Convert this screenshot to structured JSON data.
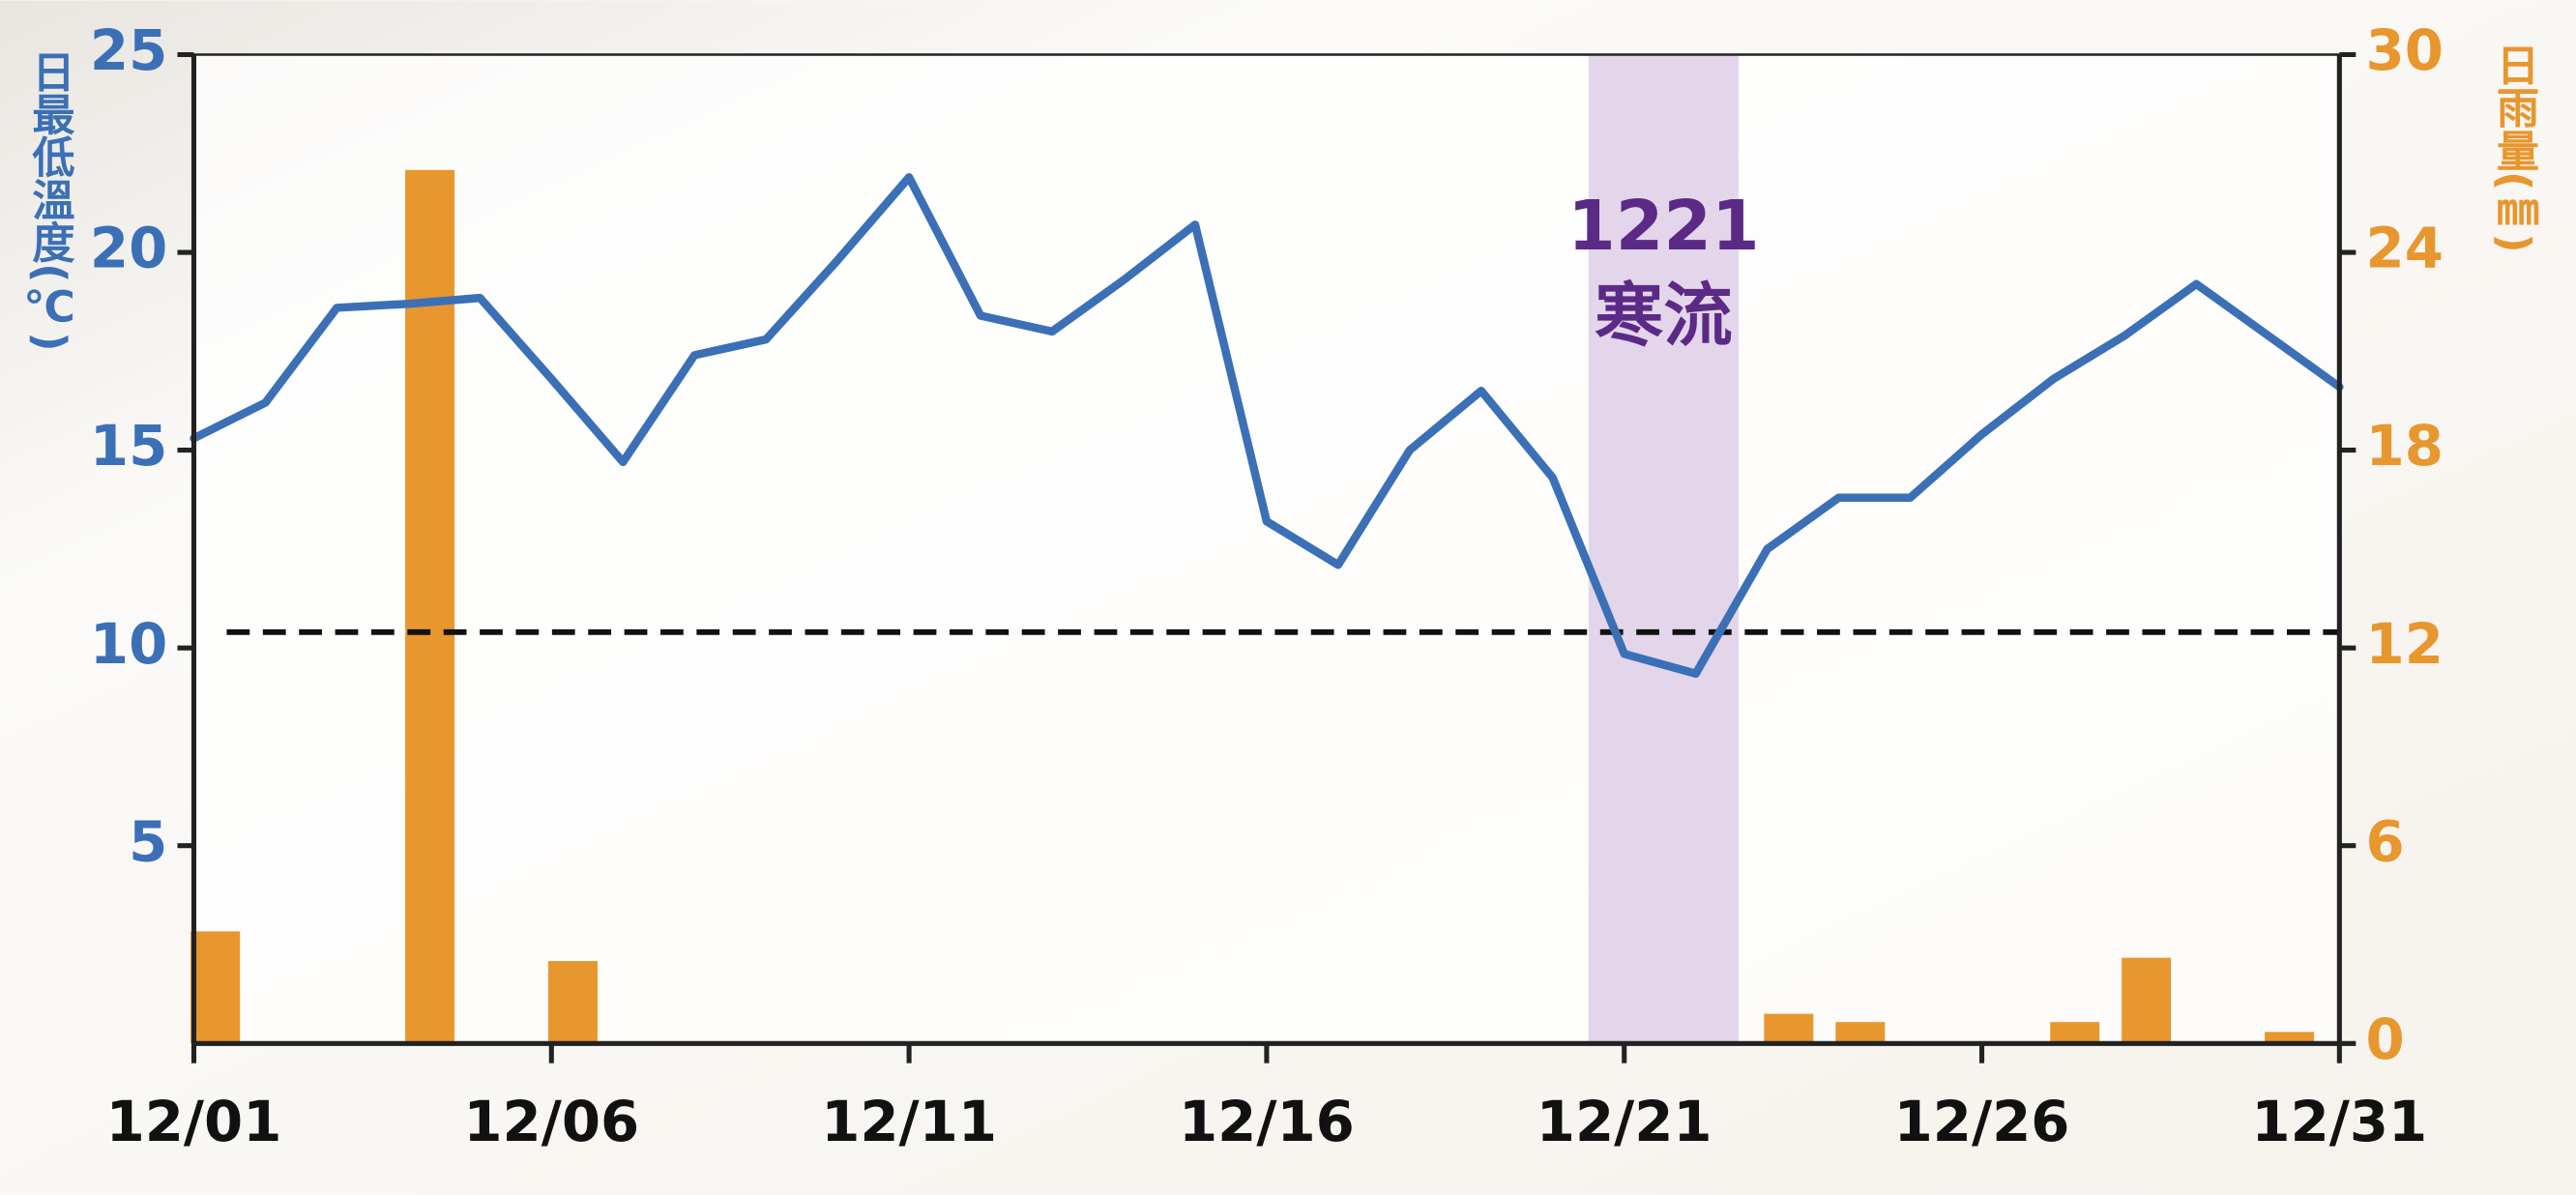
{
  "chart_data": {
    "type": "line_bar",
    "y_label": "日最低溫度(℃)",
    "y2_label": "日雨量(㎜)",
    "x": [
      1,
      2,
      3,
      4,
      5,
      6,
      7,
      8,
      9,
      10,
      11,
      12,
      13,
      14,
      15,
      16,
      17,
      18,
      19,
      20,
      21,
      22,
      23,
      24,
      25,
      26,
      27,
      28,
      29,
      30,
      31
    ],
    "xlim": [
      1,
      31
    ],
    "xticks": [
      {
        "value": 1,
        "label": "12/01"
      },
      {
        "value": 6,
        "label": "12/06"
      },
      {
        "value": 11,
        "label": "12/11"
      },
      {
        "value": 16,
        "label": "12/16"
      },
      {
        "value": 21,
        "label": "12/21"
      },
      {
        "value": 26,
        "label": "12/26"
      },
      {
        "value": 31,
        "label": "12/31"
      }
    ],
    "ylim": [
      0,
      25
    ],
    "yticks": [
      5,
      10,
      15,
      20,
      25
    ],
    "y2lim": [
      0,
      30
    ],
    "y2ticks": [
      0,
      6,
      12,
      18,
      24,
      30
    ],
    "reference_line": 10.4,
    "highlight": {
      "xrange": [
        20.5,
        22.6
      ],
      "label": [
        "1221",
        "寒流"
      ],
      "color": "#e3d6ea"
    },
    "series": [
      {
        "type": "line",
        "color": "#3b70b7",
        "values": [
          15.3,
          16.2,
          18.6,
          18.7,
          18.85,
          16.8,
          14.7,
          17.4,
          17.8,
          19.8,
          21.9,
          18.4,
          18.0,
          19.3,
          20.7,
          13.2,
          12.1,
          15.0,
          16.5,
          14.3,
          9.85,
          9.35,
          12.5,
          13.8,
          13.8,
          15.4,
          16.8,
          17.9,
          19.2,
          17.9,
          16.6
        ]
      },
      {
        "type": "bar",
        "axis": "y2",
        "color": "#e8962e",
        "values": [
          3.4,
          0,
          0,
          26.5,
          0,
          2.5,
          0,
          0,
          0,
          0,
          0,
          0,
          0,
          0,
          0,
          0,
          0,
          0,
          0,
          0,
          0,
          0,
          0.9,
          0.65,
          0,
          0,
          0.65,
          2.6,
          0,
          0.35,
          0
        ]
      }
    ]
  }
}
